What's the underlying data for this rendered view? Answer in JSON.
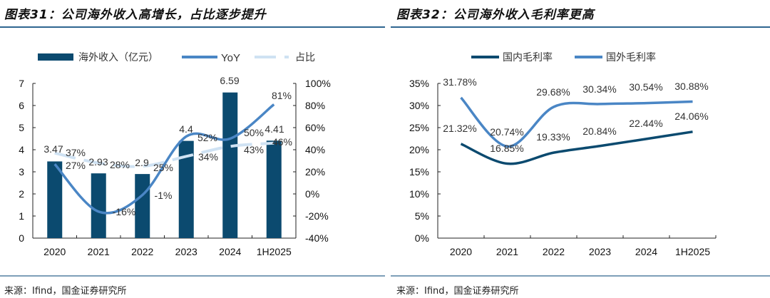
{
  "left": {
    "title": "图表31：公司海外收入高增长，占比逐步提升",
    "source": "来源：Ifind，国金证券研究所"
  },
  "right": {
    "title": "图表32：公司海外收入毛利率更高",
    "source": "来源：Ifind，国金证券研究所"
  },
  "colors": {
    "bar": "#0b4a6f",
    "yoy": "#4a86c5",
    "share": "#cfe2f3",
    "domestic": "#0b4a6f",
    "foreign": "#4a86c5",
    "rule": "#2f6690"
  },
  "chart_data": [
    {
      "type": "bar+line",
      "categories": [
        "2020",
        "2021",
        "2022",
        "2023",
        "2024",
        "1H2025"
      ],
      "y_left": {
        "ylim": [
          0,
          7
        ],
        "ticks": [
          "0",
          "1",
          "2",
          "3",
          "4",
          "5",
          "6",
          "7"
        ]
      },
      "y_right": {
        "ylim": [
          -40,
          100
        ],
        "ticks": [
          "-40%",
          "-20%",
          "0%",
          "20%",
          "40%",
          "60%",
          "80%",
          "100%"
        ]
      },
      "series": [
        {
          "name": "海外收入（亿元）",
          "kind": "bar",
          "axis": "left",
          "values": [
            3.47,
            2.93,
            2.9,
            4.4,
            6.59,
            4.41
          ],
          "labels": [
            "3.47",
            "2.93",
            "2.9",
            "4.4",
            "6.59",
            "4.41"
          ]
        },
        {
          "name": "YoY",
          "kind": "line",
          "axis": "right",
          "values": [
            27,
            -16,
            -1,
            52,
            50,
            81
          ],
          "labels": [
            "27%",
            "-16%",
            "-1%",
            "52%",
            "50%",
            "81%"
          ]
        },
        {
          "name": "占比",
          "kind": "dashed-line",
          "axis": "right",
          "values": [
            37,
            28,
            25,
            34,
            43,
            46
          ],
          "labels": [
            "37%",
            "28%",
            "25%",
            "34%",
            "43%",
            "46%"
          ]
        }
      ],
      "legend": "top",
      "grid": false
    },
    {
      "type": "line",
      "categories": [
        "2020",
        "2021",
        "2022",
        "2023",
        "2024",
        "1H2025"
      ],
      "y": {
        "ylim": [
          0,
          35
        ],
        "ticks": [
          "0%",
          "5%",
          "10%",
          "15%",
          "20%",
          "25%",
          "30%",
          "35%"
        ]
      },
      "series": [
        {
          "name": "国内毛利率",
          "values": [
            21.32,
            16.85,
            19.33,
            20.84,
            22.44,
            24.06
          ],
          "labels": [
            "21.32%",
            "16.85%",
            "19.33%",
            "20.84%",
            "22.44%",
            "24.06%"
          ]
        },
        {
          "name": "国外毛利率",
          "values": [
            31.78,
            20.74,
            29.68,
            30.34,
            30.54,
            30.88
          ],
          "labels": [
            "31.78%",
            "20.74%",
            "29.68%",
            "30.34%",
            "30.54%",
            "30.88%"
          ]
        }
      ],
      "legend": "top",
      "grid": false
    }
  ]
}
